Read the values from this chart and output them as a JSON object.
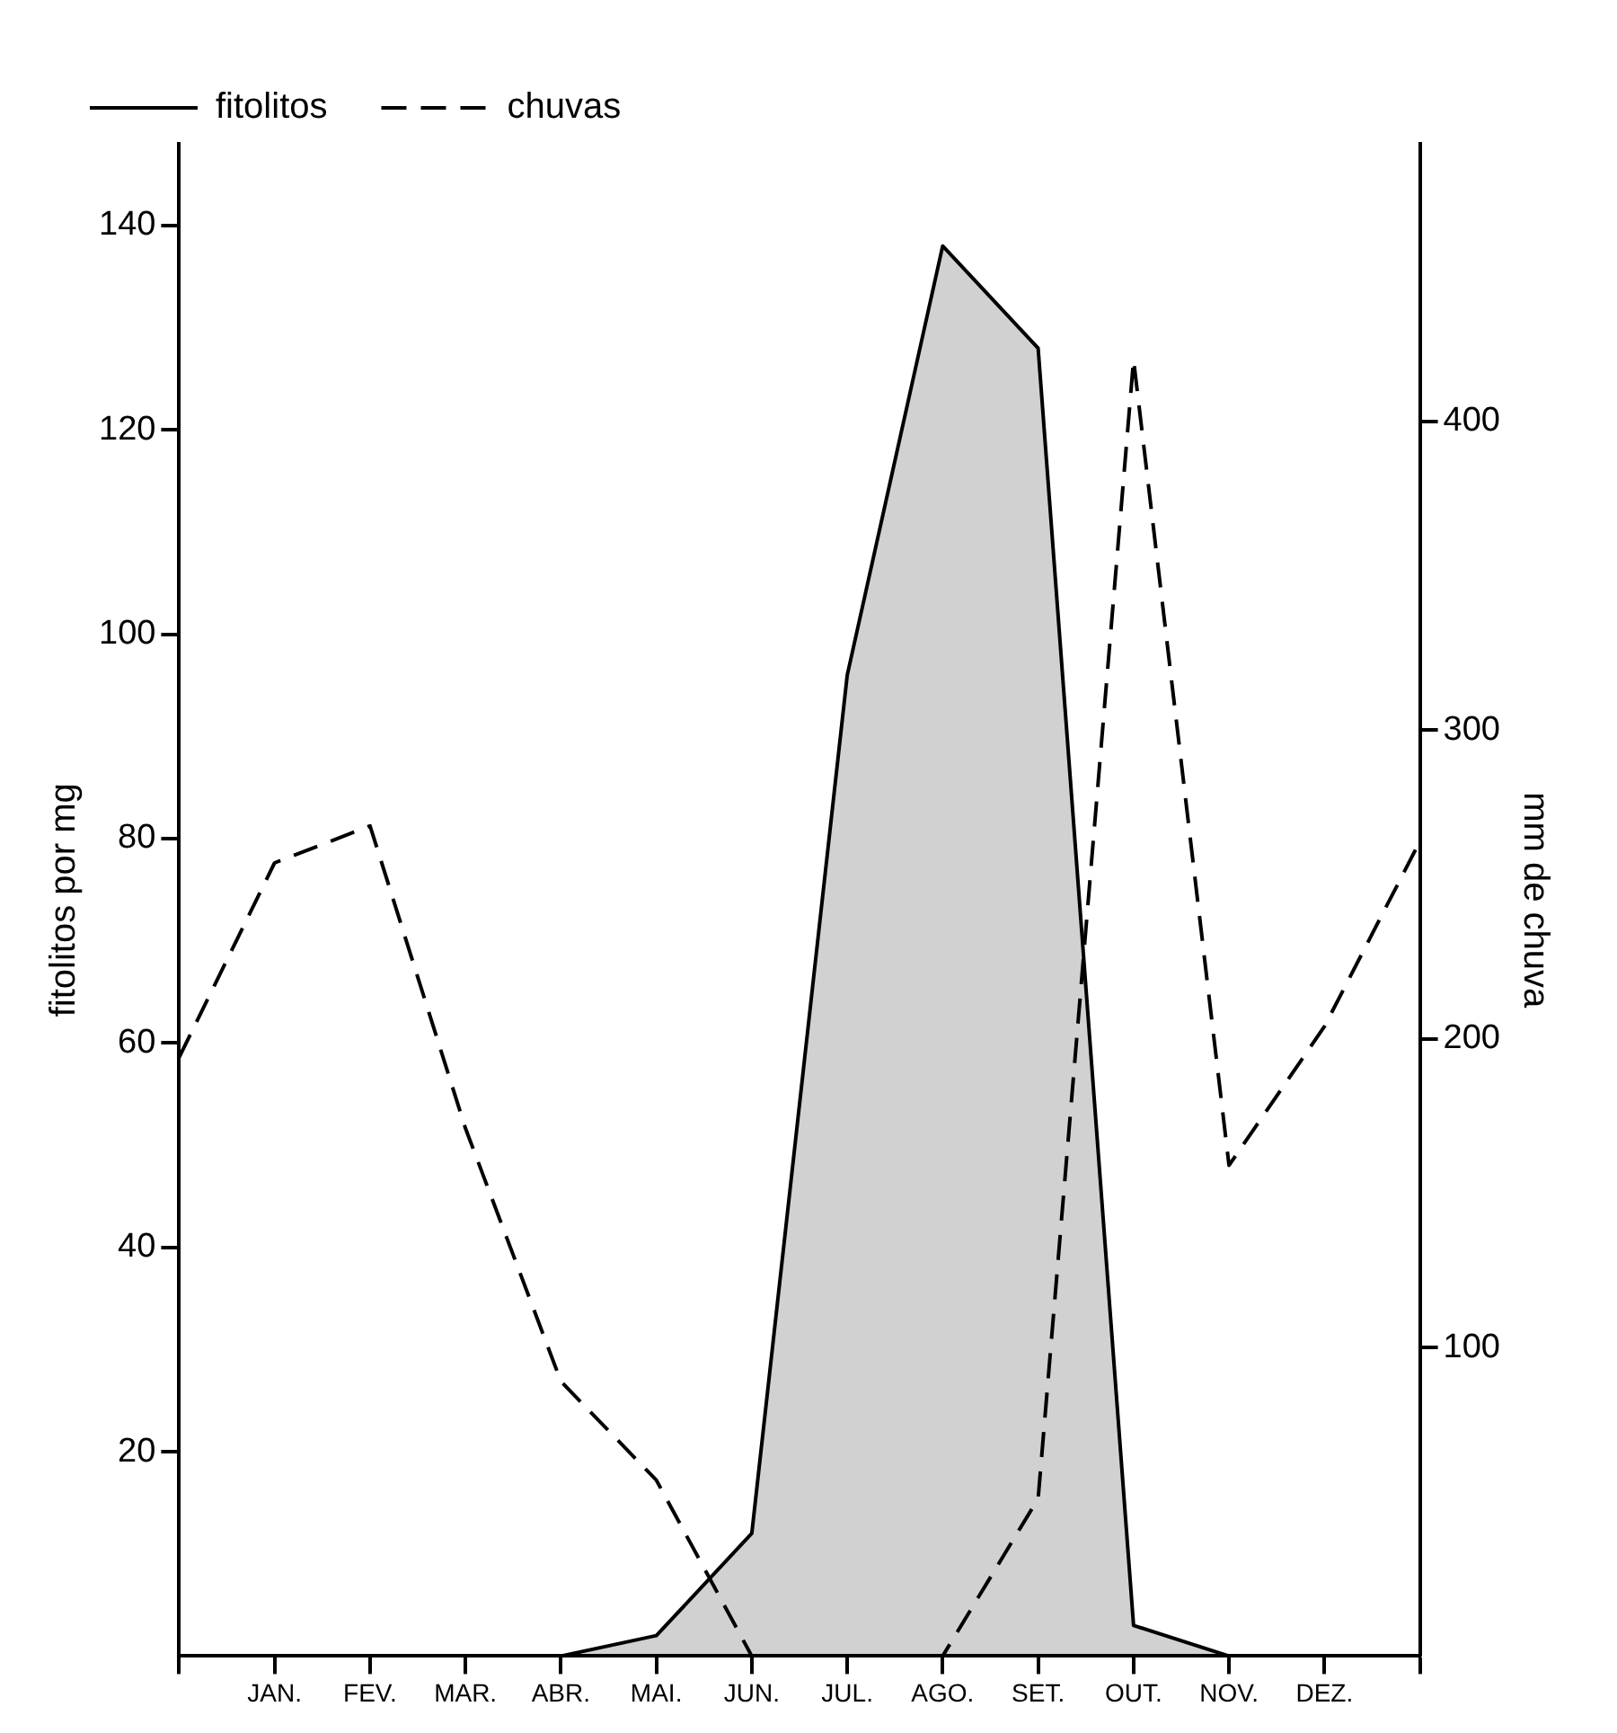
{
  "chart_data": {
    "type": "line",
    "ylabel": "fitolitos por mg",
    "y2label": "mm de chuva",
    "categories": [
      null,
      "JAN.",
      "FEV.",
      "MAR.",
      "ABR.",
      "MAI.",
      "JUN.",
      "JUL.",
      "AGO.",
      "SET.",
      "OUT.",
      "NOV.",
      "DEZ.",
      null
    ],
    "series": [
      {
        "name": "fitolitos",
        "type": "area",
        "color": "#000000",
        "line_style": "solid",
        "values": [
          null,
          null,
          null,
          null,
          0,
          2,
          12,
          96,
          138,
          128,
          3,
          0,
          null,
          null
        ]
      },
      {
        "name": "chuvas",
        "axis": "y2",
        "color": "#000000",
        "line_style": "dashed",
        "values": [
          194,
          257,
          269,
          171,
          89,
          57,
          0,
          0,
          0,
          51,
          420,
          159,
          204,
          264
        ]
      }
    ],
    "ylim": [
      0,
      148
    ],
    "yticks": [
      20,
      40,
      60,
      80,
      100,
      120,
      140
    ],
    "y2lim": [
      0,
      490
    ],
    "y2ticks": [
      100,
      200,
      300,
      400
    ],
    "grid": false,
    "legend": "top left",
    "marker": "none"
  }
}
